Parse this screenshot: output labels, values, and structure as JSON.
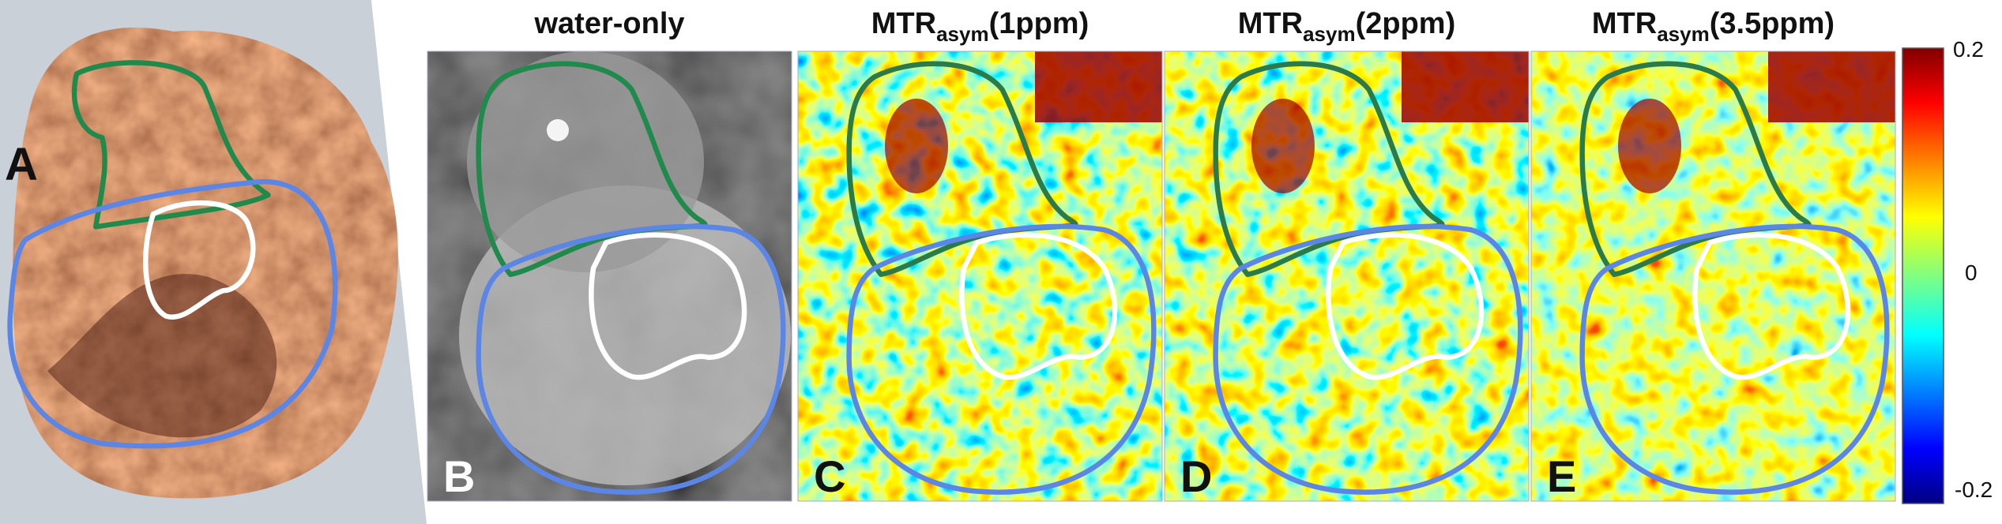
{
  "panels": [
    {
      "label": "A"
    },
    {
      "label": "B",
      "title": "water-only"
    },
    {
      "label": "C",
      "title": {
        "main": "MTR",
        "sub": "asym",
        "rest": "(1ppm)"
      }
    },
    {
      "label": "D",
      "title": {
        "main": "MTR",
        "sub": "asym",
        "rest": "(2ppm)"
      }
    },
    {
      "label": "E",
      "title": {
        "main": "MTR",
        "sub": "asym",
        "rest": "(3.5ppm)"
      }
    }
  ],
  "colorbar": {
    "ticks": [
      "0.2",
      "0",
      "-0.2"
    ]
  }
}
